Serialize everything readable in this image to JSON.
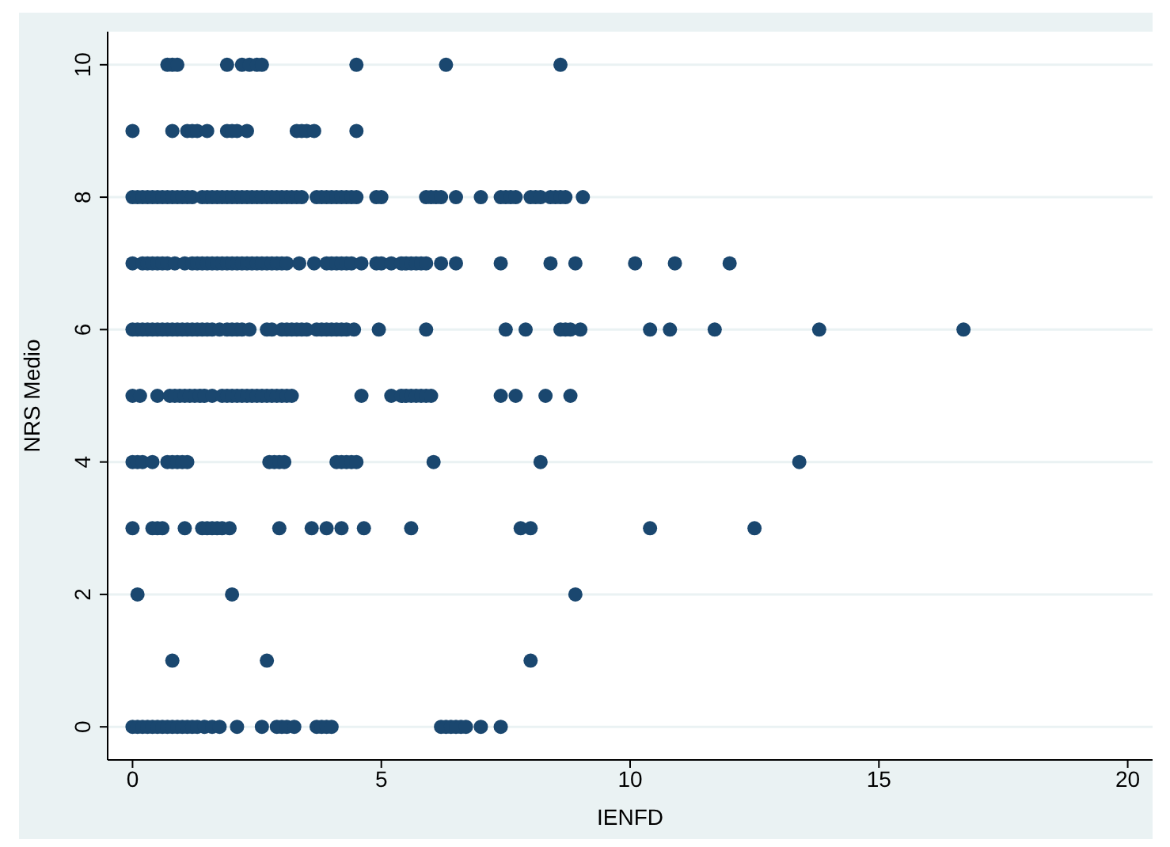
{
  "chart_data": {
    "type": "scatter",
    "xlabel": "IENFD",
    "ylabel": "NRS Medio",
    "xlim": [
      -0.5,
      20.5
    ],
    "ylim": [
      -0.5,
      10.5
    ],
    "xticks": [
      0,
      5,
      10,
      15,
      20
    ],
    "yticks": [
      0,
      2,
      4,
      6,
      8,
      10
    ],
    "grid": "y",
    "marker": "circle",
    "series": [
      {
        "color": "#1a476f",
        "x": [
          0.7,
          0.8,
          0.9,
          1.9,
          2.2,
          2.35,
          2.5,
          2.6,
          4.5,
          6.3,
          8.6,
          0,
          0.8,
          1.1,
          1.2,
          1.3,
          1.5,
          1.9,
          2.0,
          2.1,
          2.3,
          3.3,
          3.4,
          3.5,
          3.65,
          4.5,
          0,
          0.1,
          0.2,
          0.3,
          0.4,
          0.5,
          0.6,
          0.7,
          0.8,
          0.9,
          1.0,
          1.1,
          1.2,
          1.4,
          1.5,
          1.6,
          1.7,
          1.8,
          1.9,
          2.0,
          2.1,
          2.2,
          2.3,
          2.4,
          2.5,
          2.6,
          2.7,
          2.8,
          2.9,
          3.0,
          3.1,
          3.2,
          3.3,
          3.4,
          3.7,
          3.8,
          3.9,
          4.0,
          4.1,
          4.2,
          4.3,
          4.4,
          4.5,
          4.9,
          5.0,
          5.9,
          6.0,
          6.1,
          6.2,
          6.5,
          7.0,
          7.4,
          7.5,
          7.6,
          7.7,
          8.0,
          8.1,
          8.2,
          8.4,
          8.5,
          8.6,
          8.7,
          9.05,
          0,
          0.2,
          0.3,
          0.4,
          0.5,
          0.6,
          0.7,
          0.85,
          1.05,
          1.2,
          1.3,
          1.4,
          1.5,
          1.6,
          1.7,
          1.8,
          1.9,
          2.0,
          2.1,
          2.2,
          2.3,
          2.4,
          2.5,
          2.6,
          2.7,
          2.8,
          2.9,
          3.0,
          3.1,
          3.35,
          3.65,
          3.9,
          4.0,
          4.1,
          4.2,
          4.3,
          4.4,
          4.6,
          4.9,
          5.0,
          5.2,
          5.4,
          5.5,
          5.6,
          5.7,
          5.8,
          5.9,
          6.2,
          6.5,
          7.4,
          8.4,
          8.9,
          10.1,
          10.9,
          12.0,
          0,
          0.1,
          0.2,
          0.3,
          0.4,
          0.5,
          0.6,
          0.7,
          0.8,
          0.9,
          1.0,
          1.1,
          1.2,
          1.3,
          1.4,
          1.5,
          1.6,
          1.75,
          1.9,
          2.0,
          2.1,
          2.2,
          2.35,
          2.7,
          2.8,
          3.0,
          3.1,
          3.2,
          3.3,
          3.4,
          3.5,
          3.7,
          3.8,
          3.9,
          4.0,
          4.1,
          4.2,
          4.3,
          4.45,
          4.95,
          5.9,
          7.5,
          7.9,
          8.6,
          8.7,
          8.8,
          9.0,
          10.4,
          10.8,
          11.7,
          13.8,
          16.7,
          0,
          0.15,
          0.5,
          0.75,
          0.85,
          0.95,
          1.05,
          1.15,
          1.25,
          1.35,
          1.45,
          1.6,
          1.8,
          1.9,
          2.0,
          2.1,
          2.2,
          2.3,
          2.4,
          2.5,
          2.6,
          2.7,
          2.8,
          2.9,
          3.0,
          3.1,
          3.2,
          4.6,
          5.2,
          5.4,
          5.5,
          5.6,
          5.7,
          5.8,
          5.9,
          6.0,
          7.4,
          7.7,
          8.3,
          8.8,
          0,
          0.1,
          0.2,
          0.4,
          0.7,
          0.8,
          0.9,
          1.0,
          1.1,
          2.75,
          2.85,
          2.95,
          3.05,
          4.1,
          4.2,
          4.3,
          4.4,
          4.5,
          6.05,
          8.2,
          13.4,
          0,
          0.4,
          0.5,
          0.6,
          1.05,
          1.4,
          1.5,
          1.6,
          1.7,
          1.8,
          1.95,
          2.95,
          3.6,
          3.9,
          4.2,
          4.65,
          5.6,
          7.8,
          8.0,
          10.4,
          12.5,
          0.1,
          2.0,
          8.9,
          0.8,
          2.7,
          8.0,
          0,
          0.1,
          0.2,
          0.3,
          0.4,
          0.5,
          0.6,
          0.7,
          0.8,
          0.9,
          1.0,
          1.1,
          1.2,
          1.3,
          1.45,
          1.6,
          1.75,
          2.1,
          2.6,
          2.9,
          3.0,
          3.1,
          3.25,
          3.7,
          3.8,
          3.9,
          4.0,
          6.2,
          6.3,
          6.4,
          6.5,
          6.6,
          6.7,
          7.0,
          7.4
        ],
        "values": [
          10,
          10,
          10,
          10,
          10,
          10,
          10,
          10,
          10,
          10,
          10,
          9,
          9,
          9,
          9,
          9,
          9,
          9,
          9,
          9,
          9,
          9,
          9,
          9,
          9,
          9,
          8,
          8,
          8,
          8,
          8,
          8,
          8,
          8,
          8,
          8,
          8,
          8,
          8,
          8,
          8,
          8,
          8,
          8,
          8,
          8,
          8,
          8,
          8,
          8,
          8,
          8,
          8,
          8,
          8,
          8,
          8,
          8,
          8,
          8,
          8,
          8,
          8,
          8,
          8,
          8,
          8,
          8,
          8,
          8,
          8,
          8,
          8,
          8,
          8,
          8,
          8,
          8,
          8,
          8,
          8,
          8,
          8,
          8,
          8,
          8,
          8,
          8,
          8,
          7,
          7,
          7,
          7,
          7,
          7,
          7,
          7,
          7,
          7,
          7,
          7,
          7,
          7,
          7,
          7,
          7,
          7,
          7,
          7,
          7,
          7,
          7,
          7,
          7,
          7,
          7,
          7,
          7,
          7,
          7,
          7,
          7,
          7,
          7,
          7,
          7,
          7,
          7,
          7,
          7,
          7,
          7,
          7,
          7,
          7,
          7,
          7,
          7,
          7,
          7,
          7,
          7,
          7,
          7,
          6,
          6,
          6,
          6,
          6,
          6,
          6,
          6,
          6,
          6,
          6,
          6,
          6,
          6,
          6,
          6,
          6,
          6,
          6,
          6,
          6,
          6,
          6,
          6,
          6,
          6,
          6,
          6,
          6,
          6,
          6,
          6,
          6,
          6,
          6,
          6,
          6,
          6,
          6,
          6,
          6,
          6,
          6,
          6,
          6,
          6,
          6,
          6,
          6,
          6,
          6,
          6,
          5,
          5,
          5,
          5,
          5,
          5,
          5,
          5,
          5,
          5,
          5,
          5,
          5,
          5,
          5,
          5,
          5,
          5,
          5,
          5,
          5,
          5,
          5,
          5,
          5,
          5,
          5,
          5,
          5,
          5,
          5,
          5,
          5,
          5,
          5,
          5,
          5,
          5,
          5,
          5,
          4,
          4,
          4,
          4,
          4,
          4,
          4,
          4,
          4,
          4,
          4,
          4,
          4,
          4,
          4,
          4,
          4,
          4,
          4,
          4,
          4,
          3,
          3,
          3,
          3,
          3,
          3,
          3,
          3,
          3,
          3,
          3,
          3,
          3,
          3,
          3,
          3,
          3,
          3,
          3,
          3,
          3,
          2,
          2,
          2,
          1,
          1,
          1,
          0,
          0,
          0,
          0,
          0,
          0,
          0,
          0,
          0,
          0,
          0,
          0,
          0,
          0,
          0,
          0,
          0,
          0,
          0,
          0,
          0,
          0,
          0,
          0,
          0,
          0,
          0,
          0,
          0,
          0,
          0,
          0,
          0,
          0,
          0
        ]
      }
    ]
  }
}
